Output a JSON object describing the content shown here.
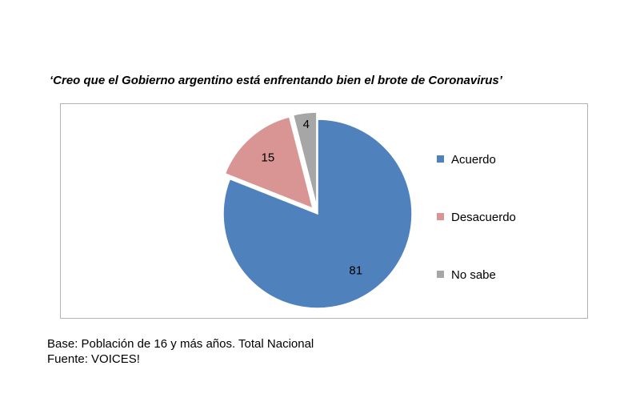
{
  "title": "‘Creo que el Gobierno argentino está enfrentando bien el brote de Coronavirus’",
  "footnotes": {
    "base": "Base: Población de 16 y más años. Total Nacional",
    "fuente": "Fuente: VOICES!"
  },
  "chart_data": {
    "type": "pie",
    "title": "‘Creo que el Gobierno argentino está enfrentando bien el brote de Coronavirus’",
    "legend_position": "right",
    "slices": [
      {
        "label": "Acuerdo",
        "value": 81,
        "color": "#4f81bd",
        "exploded": false
      },
      {
        "label": "Desacuerdo",
        "value": 15,
        "color": "#d99594",
        "exploded": true
      },
      {
        "label": "No sabe",
        "value": 4,
        "color": "#a6a6a6",
        "exploded": true
      }
    ]
  }
}
